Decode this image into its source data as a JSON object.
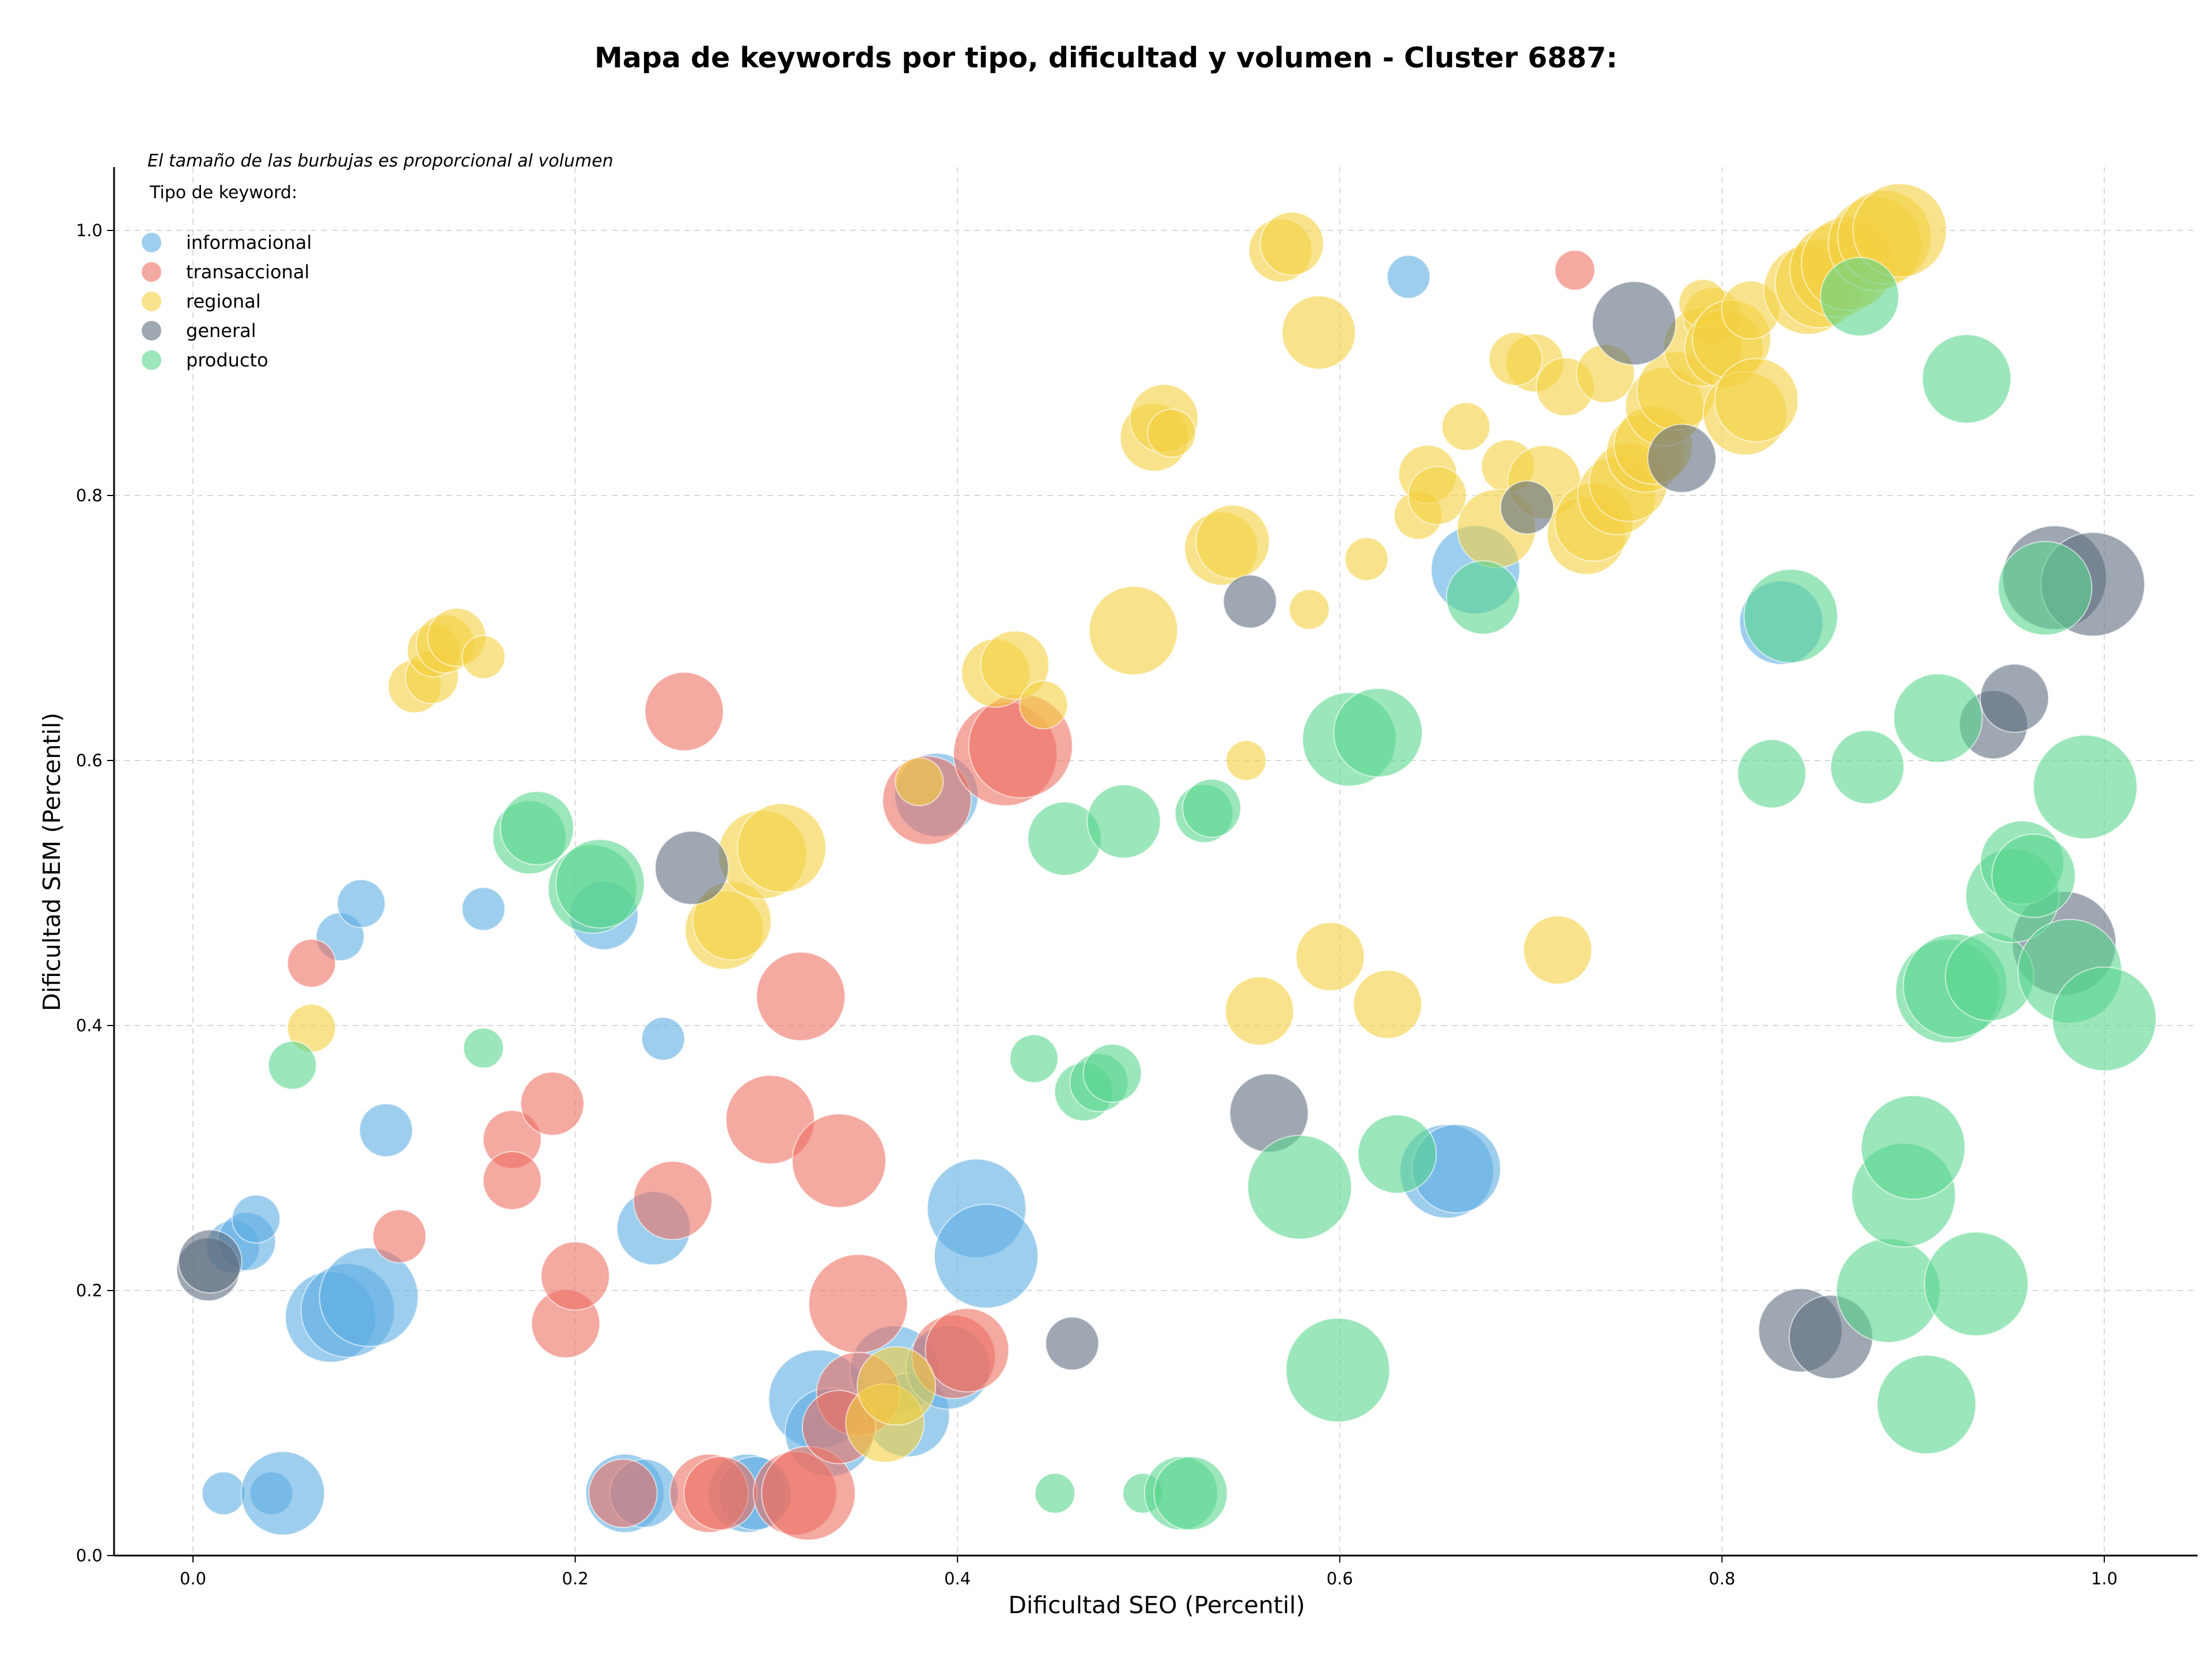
{
  "colors": {
    "informacional": "#5DADE2",
    "transaccional": "#EC7063",
    "regional": "#F4D03F",
    "general": "#5D6D7E",
    "producto": "#58D68D"
  },
  "chart_data": {
    "type": "scatter",
    "title": "Mapa de keywords por tipo, dificultad y volumen - Cluster 6887:",
    "xlabel": "Dificultad SEO (Percentil)",
    "ylabel": "Dificultad SEM (Percentil)",
    "xlim": [
      -0.04,
      1.05
    ],
    "ylim": [
      0,
      1.05
    ],
    "xticks": [
      "0.0",
      "0.2",
      "0.4",
      "0.6",
      "0.8",
      "1.0"
    ],
    "yticks": [
      "0.0",
      "0.2",
      "0.4",
      "0.6",
      "0.8",
      "1.0"
    ],
    "grid": true,
    "legend_placement": "top-left",
    "legend_title": "Tipo de keyword:",
    "note": "El tamaño de las burbujas es proporcional al volumen",
    "series": [
      {
        "name": "informacional",
        "points": [
          {
            "x": 0.016,
            "y": 0.047,
            "s": 0.15
          },
          {
            "x": 0.041,
            "y": 0.047,
            "s": 0.15
          },
          {
            "x": 0.047,
            "y": 0.047,
            "s": 0.55
          },
          {
            "x": 0.021,
            "y": 0.233,
            "s": 0.25
          },
          {
            "x": 0.028,
            "y": 0.237,
            "s": 0.3
          },
          {
            "x": 0.033,
            "y": 0.254,
            "s": 0.2
          },
          {
            "x": 0.072,
            "y": 0.18,
            "s": 0.62
          },
          {
            "x": 0.081,
            "y": 0.185,
            "s": 0.65
          },
          {
            "x": 0.092,
            "y": 0.195,
            "s": 0.7
          },
          {
            "x": 0.101,
            "y": 0.321,
            "s": 0.25
          },
          {
            "x": 0.077,
            "y": 0.467,
            "s": 0.2
          },
          {
            "x": 0.088,
            "y": 0.492,
            "s": 0.2
          },
          {
            "x": 0.152,
            "y": 0.488,
            "s": 0.15
          },
          {
            "x": 0.215,
            "y": 0.483,
            "s": 0.4
          },
          {
            "x": 0.246,
            "y": 0.39,
            "s": 0.15
          },
          {
            "x": 0.241,
            "y": 0.247,
            "s": 0.45
          },
          {
            "x": 0.226,
            "y": 0.047,
            "s": 0.5
          },
          {
            "x": 0.236,
            "y": 0.047,
            "s": 0.4
          },
          {
            "x": 0.29,
            "y": 0.047,
            "s": 0.5
          },
          {
            "x": 0.294,
            "y": 0.047,
            "s": 0.45
          },
          {
            "x": 0.327,
            "y": 0.118,
            "s": 0.7
          },
          {
            "x": 0.333,
            "y": 0.093,
            "s": 0.6
          },
          {
            "x": 0.367,
            "y": 0.14,
            "s": 0.6
          },
          {
            "x": 0.374,
            "y": 0.106,
            "s": 0.55
          },
          {
            "x": 0.395,
            "y": 0.142,
            "s": 0.55
          },
          {
            "x": 0.389,
            "y": 0.574,
            "s": 0.55
          },
          {
            "x": 0.41,
            "y": 0.262,
            "s": 0.7
          },
          {
            "x": 0.415,
            "y": 0.226,
            "s": 0.75
          },
          {
            "x": 0.636,
            "y": 0.965,
            "s": 0.15
          },
          {
            "x": 0.671,
            "y": 0.744,
            "s": 0.6
          },
          {
            "x": 0.656,
            "y": 0.29,
            "s": 0.65
          },
          {
            "x": 0.661,
            "y": 0.292,
            "s": 0.6
          },
          {
            "x": 0.831,
            "y": 0.704,
            "s": 0.55
          }
        ]
      },
      {
        "name": "transaccional",
        "points": [
          {
            "x": 0.062,
            "y": 0.447,
            "s": 0.2
          },
          {
            "x": 0.108,
            "y": 0.241,
            "s": 0.25
          },
          {
            "x": 0.167,
            "y": 0.314,
            "s": 0.3
          },
          {
            "x": 0.167,
            "y": 0.283,
            "s": 0.3
          },
          {
            "x": 0.188,
            "y": 0.341,
            "s": 0.35
          },
          {
            "x": 0.195,
            "y": 0.175,
            "s": 0.4
          },
          {
            "x": 0.2,
            "y": 0.211,
            "s": 0.4
          },
          {
            "x": 0.257,
            "y": 0.637,
            "s": 0.5
          },
          {
            "x": 0.251,
            "y": 0.268,
            "s": 0.5
          },
          {
            "x": 0.318,
            "y": 0.422,
            "s": 0.6
          },
          {
            "x": 0.302,
            "y": 0.329,
            "s": 0.6
          },
          {
            "x": 0.338,
            "y": 0.298,
            "s": 0.65
          },
          {
            "x": 0.348,
            "y": 0.19,
            "s": 0.7
          },
          {
            "x": 0.225,
            "y": 0.047,
            "s": 0.4
          },
          {
            "x": 0.27,
            "y": 0.047,
            "s": 0.5
          },
          {
            "x": 0.276,
            "y": 0.047,
            "s": 0.45
          },
          {
            "x": 0.315,
            "y": 0.047,
            "s": 0.55
          },
          {
            "x": 0.322,
            "y": 0.047,
            "s": 0.65
          },
          {
            "x": 0.348,
            "y": 0.122,
            "s": 0.55
          },
          {
            "x": 0.338,
            "y": 0.097,
            "s": 0.45
          },
          {
            "x": 0.384,
            "y": 0.57,
            "s": 0.6
          },
          {
            "x": 0.398,
            "y": 0.15,
            "s": 0.55
          },
          {
            "x": 0.405,
            "y": 0.155,
            "s": 0.55
          },
          {
            "x": 0.425,
            "y": 0.605,
            "s": 0.75
          },
          {
            "x": 0.433,
            "y": 0.611,
            "s": 0.75
          },
          {
            "x": 0.723,
            "y": 0.97,
            "s": 0.12
          }
        ]
      },
      {
        "name": "regional",
        "points": [
          {
            "x": 0.062,
            "y": 0.398,
            "s": 0.2
          },
          {
            "x": 0.116,
            "y": 0.656,
            "s": 0.25
          },
          {
            "x": 0.125,
            "y": 0.663,
            "s": 0.25
          },
          {
            "x": 0.126,
            "y": 0.683,
            "s": 0.25
          },
          {
            "x": 0.132,
            "y": 0.688,
            "s": 0.3
          },
          {
            "x": 0.138,
            "y": 0.693,
            "s": 0.3
          },
          {
            "x": 0.152,
            "y": 0.678,
            "s": 0.15
          },
          {
            "x": 0.278,
            "y": 0.472,
            "s": 0.5
          },
          {
            "x": 0.282,
            "y": 0.479,
            "s": 0.5
          },
          {
            "x": 0.298,
            "y": 0.529,
            "s": 0.6
          },
          {
            "x": 0.308,
            "y": 0.534,
            "s": 0.6
          },
          {
            "x": 0.38,
            "y": 0.584,
            "s": 0.2
          },
          {
            "x": 0.362,
            "y": 0.1,
            "s": 0.5
          },
          {
            "x": 0.368,
            "y": 0.128,
            "s": 0.5
          },
          {
            "x": 0.42,
            "y": 0.666,
            "s": 0.4
          },
          {
            "x": 0.43,
            "y": 0.672,
            "s": 0.4
          },
          {
            "x": 0.445,
            "y": 0.642,
            "s": 0.2
          },
          {
            "x": 0.492,
            "y": 0.698,
            "s": 0.6
          },
          {
            "x": 0.503,
            "y": 0.844,
            "s": 0.4
          },
          {
            "x": 0.508,
            "y": 0.858,
            "s": 0.4
          },
          {
            "x": 0.512,
            "y": 0.847,
            "s": 0.2
          },
          {
            "x": 0.538,
            "y": 0.76,
            "s": 0.45
          },
          {
            "x": 0.544,
            "y": 0.765,
            "s": 0.45
          },
          {
            "x": 0.551,
            "y": 0.6,
            "s": 0.12
          },
          {
            "x": 0.558,
            "y": 0.411,
            "s": 0.4
          },
          {
            "x": 0.569,
            "y": 0.985,
            "s": 0.35
          },
          {
            "x": 0.575,
            "y": 0.99,
            "s": 0.35
          },
          {
            "x": 0.584,
            "y": 0.714,
            "s": 0.12
          },
          {
            "x": 0.589,
            "y": 0.923,
            "s": 0.45
          },
          {
            "x": 0.595,
            "y": 0.452,
            "s": 0.4
          },
          {
            "x": 0.614,
            "y": 0.752,
            "s": 0.15
          },
          {
            "x": 0.625,
            "y": 0.416,
            "s": 0.4
          },
          {
            "x": 0.641,
            "y": 0.785,
            "s": 0.2
          },
          {
            "x": 0.646,
            "y": 0.816,
            "s": 0.3
          },
          {
            "x": 0.651,
            "y": 0.8,
            "s": 0.3
          },
          {
            "x": 0.666,
            "y": 0.852,
            "s": 0.2
          },
          {
            "x": 0.688,
            "y": 0.822,
            "s": 0.25
          },
          {
            "x": 0.682,
            "y": 0.775,
            "s": 0.5
          },
          {
            "x": 0.702,
            "y": 0.9,
            "s": 0.3
          },
          {
            "x": 0.707,
            "y": 0.81,
            "s": 0.45
          },
          {
            "x": 0.714,
            "y": 0.457,
            "s": 0.4
          },
          {
            "x": 0.692,
            "y": 0.903,
            "s": 0.25
          },
          {
            "x": 0.718,
            "y": 0.882,
            "s": 0.3
          },
          {
            "x": 0.729,
            "y": 0.77,
            "s": 0.5
          },
          {
            "x": 0.733,
            "y": 0.78,
            "s": 0.5
          },
          {
            "x": 0.739,
            "y": 0.892,
            "s": 0.3
          },
          {
            "x": 0.745,
            "y": 0.8,
            "s": 0.5
          },
          {
            "x": 0.751,
            "y": 0.81,
            "s": 0.5
          },
          {
            "x": 0.76,
            "y": 0.832,
            "s": 0.5
          },
          {
            "x": 0.764,
            "y": 0.838,
            "s": 0.5
          },
          {
            "x": 0.77,
            "y": 0.867,
            "s": 0.5
          },
          {
            "x": 0.776,
            "y": 0.879,
            "s": 0.5
          },
          {
            "x": 0.79,
            "y": 0.912,
            "s": 0.5
          },
          {
            "x": 0.795,
            "y": 0.935,
            "s": 0.3
          },
          {
            "x": 0.79,
            "y": 0.945,
            "s": 0.2
          },
          {
            "x": 0.801,
            "y": 0.911,
            "s": 0.5
          },
          {
            "x": 0.805,
            "y": 0.918,
            "s": 0.5
          },
          {
            "x": 0.812,
            "y": 0.862,
            "s": 0.55
          },
          {
            "x": 0.818,
            "y": 0.872,
            "s": 0.55
          },
          {
            "x": 0.815,
            "y": 0.94,
            "s": 0.3
          },
          {
            "x": 0.845,
            "y": 0.955,
            "s": 0.6
          },
          {
            "x": 0.851,
            "y": 0.96,
            "s": 0.6
          },
          {
            "x": 0.86,
            "y": 0.97,
            "s": 0.65
          },
          {
            "x": 0.866,
            "y": 0.975,
            "s": 0.65
          },
          {
            "x": 0.88,
            "y": 0.99,
            "s": 0.65
          },
          {
            "x": 0.885,
            "y": 0.995,
            "s": 0.65
          },
          {
            "x": 0.893,
            "y": 1.0,
            "s": 0.65
          }
        ]
      },
      {
        "name": "general",
        "points": [
          {
            "x": 0.008,
            "y": 0.216,
            "s": 0.35
          },
          {
            "x": 0.009,
            "y": 0.222,
            "s": 0.35
          },
          {
            "x": 0.261,
            "y": 0.519,
            "s": 0.45
          },
          {
            "x": 0.46,
            "y": 0.16,
            "s": 0.25
          },
          {
            "x": 0.553,
            "y": 0.72,
            "s": 0.25
          },
          {
            "x": 0.563,
            "y": 0.334,
            "s": 0.5
          },
          {
            "x": 0.698,
            "y": 0.791,
            "s": 0.25
          },
          {
            "x": 0.754,
            "y": 0.93,
            "s": 0.55
          },
          {
            "x": 0.779,
            "y": 0.828,
            "s": 0.4
          },
          {
            "x": 0.841,
            "y": 0.17,
            "s": 0.55
          },
          {
            "x": 0.857,
            "y": 0.165,
            "s": 0.55
          },
          {
            "x": 0.942,
            "y": 0.627,
            "s": 0.4
          },
          {
            "x": 0.953,
            "y": 0.647,
            "s": 0.4
          },
          {
            "x": 0.974,
            "y": 0.738,
            "s": 0.75
          },
          {
            "x": 0.994,
            "y": 0.733,
            "s": 0.75
          },
          {
            "x": 0.979,
            "y": 0.462,
            "s": 0.75
          }
        ]
      },
      {
        "name": "producto",
        "points": [
          {
            "x": 0.052,
            "y": 0.37,
            "s": 0.2
          },
          {
            "x": 0.152,
            "y": 0.383,
            "s": 0.12
          },
          {
            "x": 0.176,
            "y": 0.542,
            "s": 0.45
          },
          {
            "x": 0.18,
            "y": 0.549,
            "s": 0.45
          },
          {
            "x": 0.209,
            "y": 0.503,
            "s": 0.6
          },
          {
            "x": 0.213,
            "y": 0.507,
            "s": 0.6
          },
          {
            "x": 0.44,
            "y": 0.375,
            "s": 0.2
          },
          {
            "x": 0.451,
            "y": 0.047,
            "s": 0.12
          },
          {
            "x": 0.456,
            "y": 0.541,
            "s": 0.45
          },
          {
            "x": 0.466,
            "y": 0.35,
            "s": 0.3
          },
          {
            "x": 0.474,
            "y": 0.357,
            "s": 0.3
          },
          {
            "x": 0.481,
            "y": 0.364,
            "s": 0.3
          },
          {
            "x": 0.487,
            "y": 0.554,
            "s": 0.45
          },
          {
            "x": 0.497,
            "y": 0.047,
            "s": 0.12
          },
          {
            "x": 0.517,
            "y": 0.047,
            "s": 0.45
          },
          {
            "x": 0.522,
            "y": 0.047,
            "s": 0.45
          },
          {
            "x": 0.529,
            "y": 0.56,
            "s": 0.3
          },
          {
            "x": 0.533,
            "y": 0.564,
            "s": 0.3
          },
          {
            "x": 0.579,
            "y": 0.278,
            "s": 0.75
          },
          {
            "x": 0.599,
            "y": 0.14,
            "s": 0.75
          },
          {
            "x": 0.605,
            "y": 0.616,
            "s": 0.65
          },
          {
            "x": 0.62,
            "y": 0.621,
            "s": 0.6
          },
          {
            "x": 0.63,
            "y": 0.303,
            "s": 0.5
          },
          {
            "x": 0.675,
            "y": 0.723,
            "s": 0.45
          },
          {
            "x": 0.836,
            "y": 0.709,
            "s": 0.65
          },
          {
            "x": 0.826,
            "y": 0.59,
            "s": 0.4
          },
          {
            "x": 0.872,
            "y": 0.95,
            "s": 0.5
          },
          {
            "x": 0.876,
            "y": 0.595,
            "s": 0.45
          },
          {
            "x": 0.887,
            "y": 0.2,
            "s": 0.75
          },
          {
            "x": 0.895,
            "y": 0.272,
            "s": 0.75
          },
          {
            "x": 0.9,
            "y": 0.308,
            "s": 0.75
          },
          {
            "x": 0.907,
            "y": 0.114,
            "s": 0.7
          },
          {
            "x": 0.913,
            "y": 0.632,
            "s": 0.6
          },
          {
            "x": 0.918,
            "y": 0.426,
            "s": 0.75
          },
          {
            "x": 0.922,
            "y": 0.43,
            "s": 0.75
          },
          {
            "x": 0.928,
            "y": 0.888,
            "s": 0.6
          },
          {
            "x": 0.933,
            "y": 0.205,
            "s": 0.75
          },
          {
            "x": 0.94,
            "y": 0.437,
            "s": 0.6
          },
          {
            "x": 0.952,
            "y": 0.498,
            "s": 0.65
          },
          {
            "x": 0.957,
            "y": 0.523,
            "s": 0.55
          },
          {
            "x": 0.963,
            "y": 0.513,
            "s": 0.55
          },
          {
            "x": 0.969,
            "y": 0.73,
            "s": 0.65
          },
          {
            "x": 0.982,
            "y": 0.441,
            "s": 0.75
          },
          {
            "x": 0.99,
            "y": 0.58,
            "s": 0.75
          },
          {
            "x": 1.0,
            "y": 0.405,
            "s": 0.75
          }
        ]
      }
    ]
  }
}
